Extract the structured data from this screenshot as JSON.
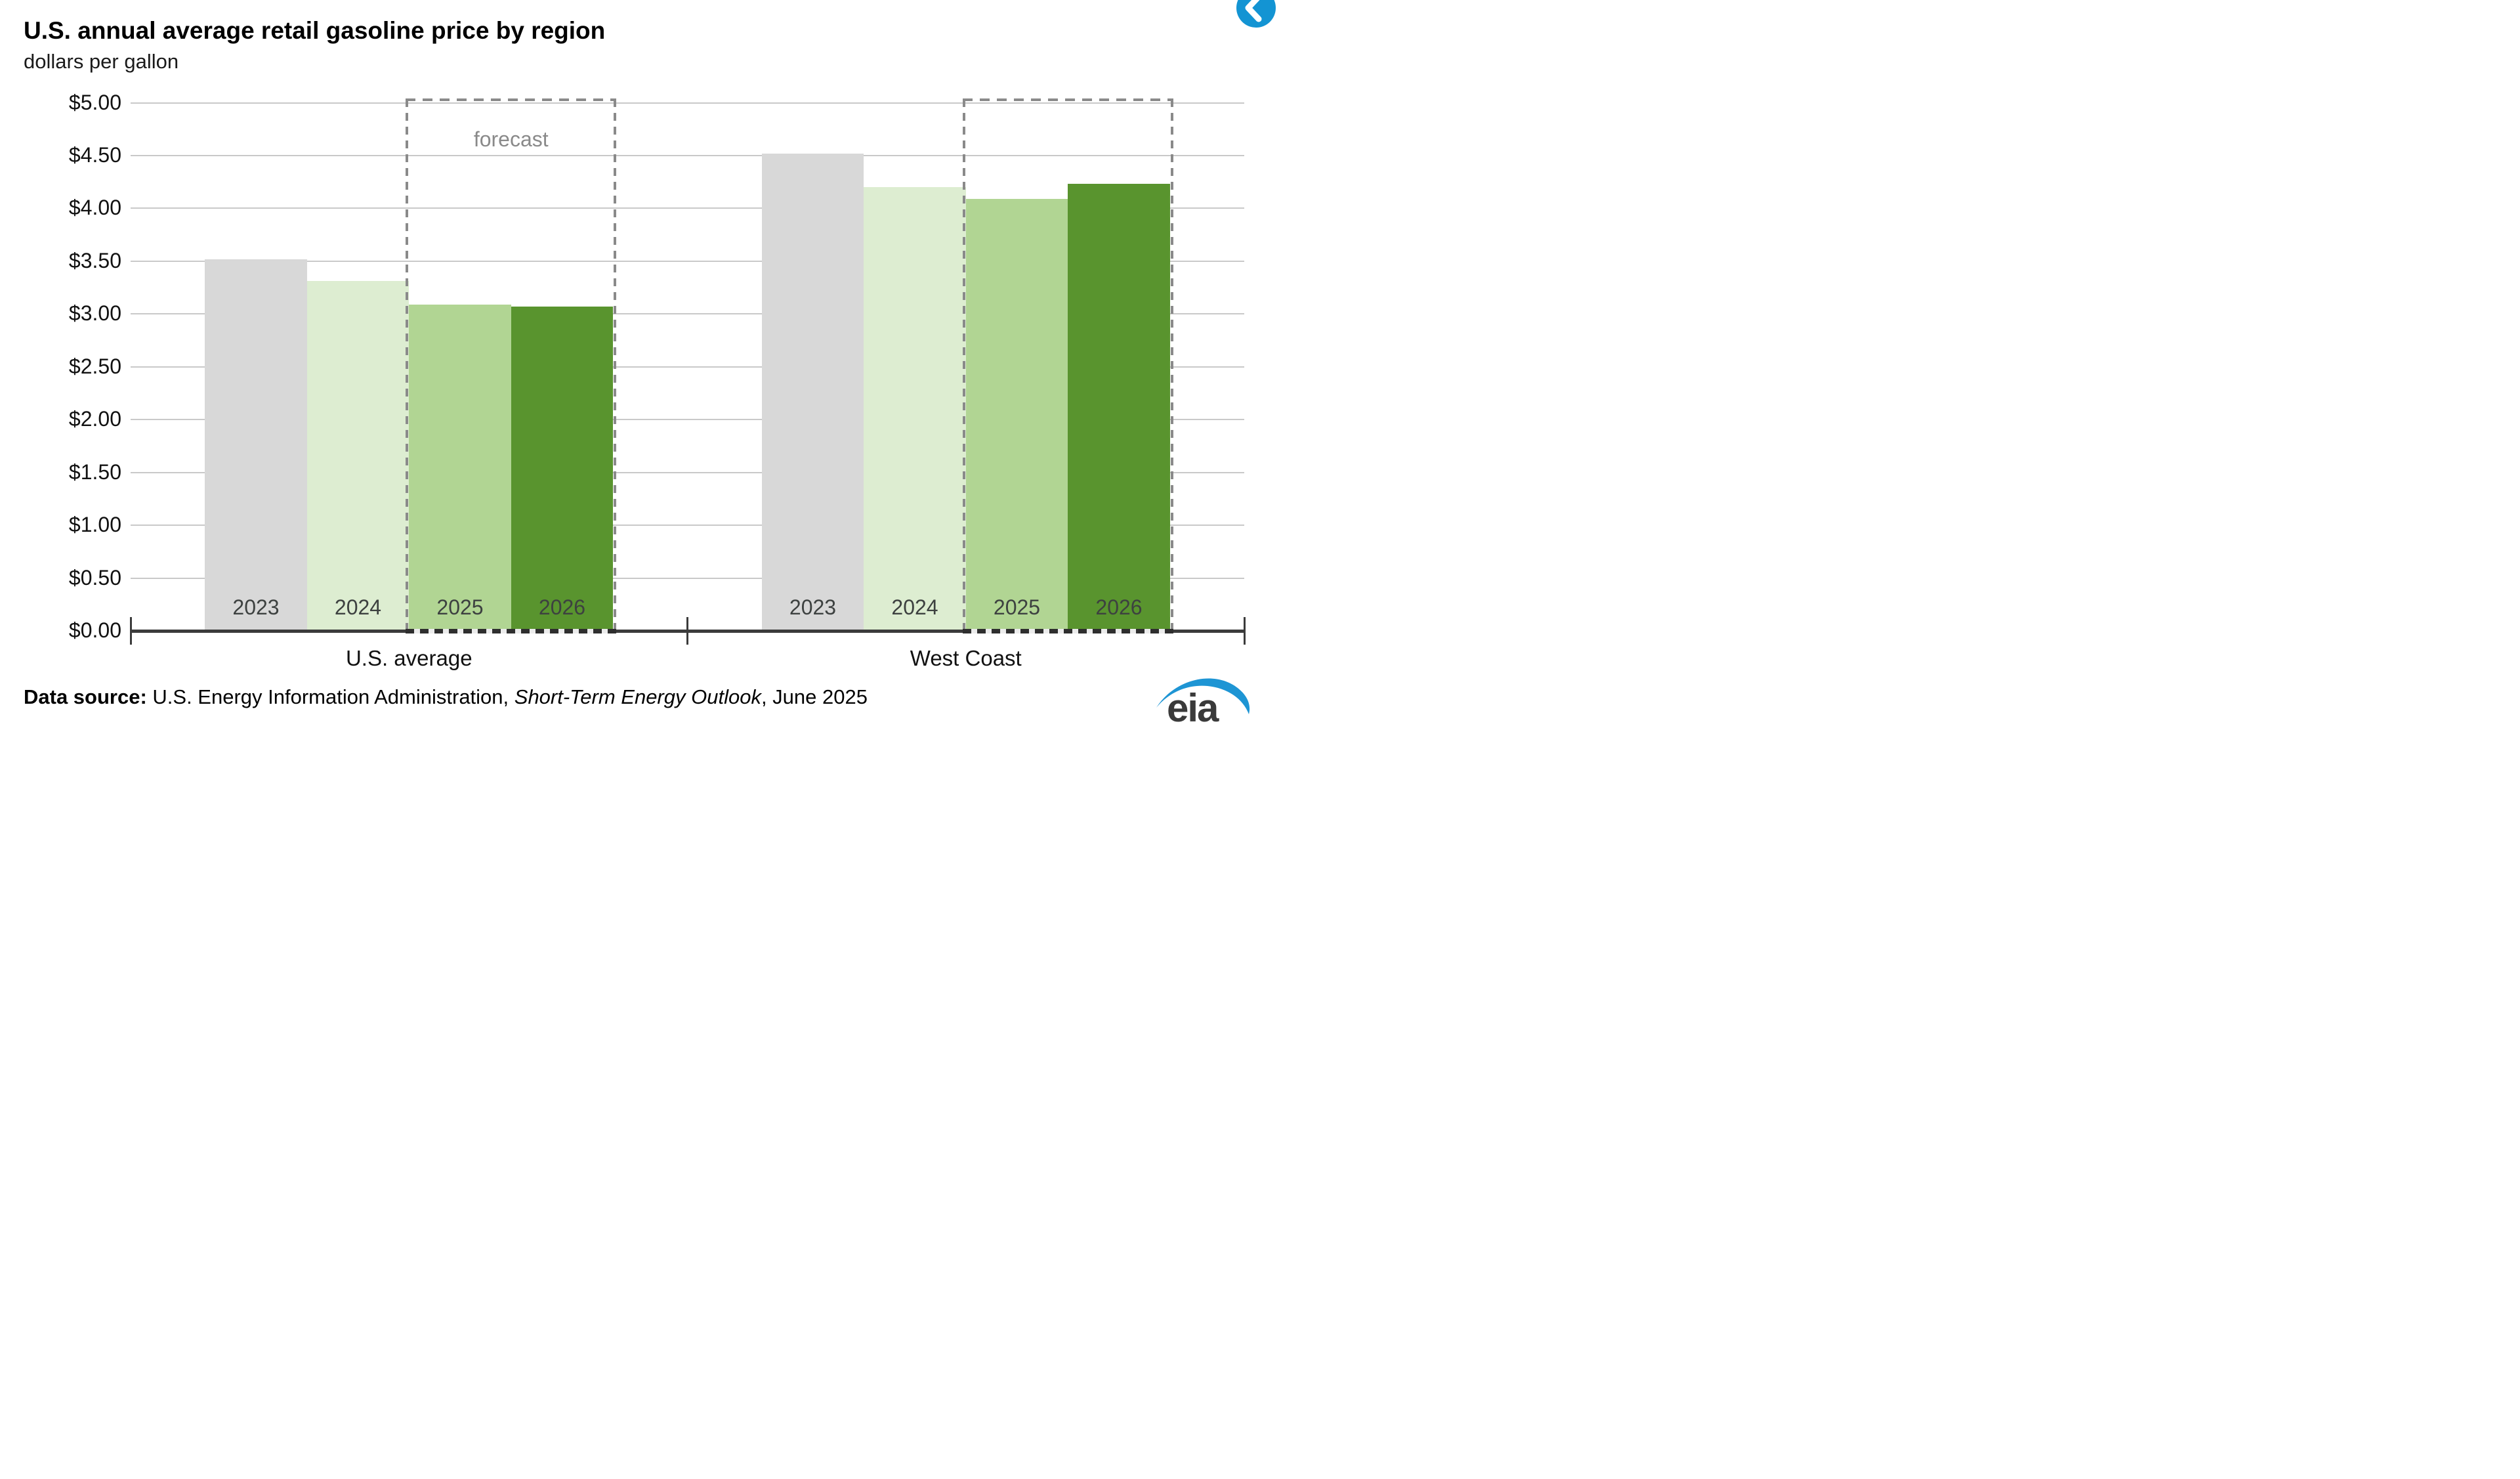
{
  "header": {
    "title": "U.S. annual average retail gasoline price by region",
    "subtitle": "dollars per gallon"
  },
  "chart": {
    "y_tick_labels": [
      "$0.00",
      "$0.50",
      "$1.00",
      "$1.50",
      "$2.00",
      "$2.50",
      "$3.00",
      "$3.50",
      "$4.00",
      "$4.50",
      "$5.00"
    ],
    "forecast_label": "forecast",
    "grid_color": "#c9c9c9",
    "axis_color": "#3b3b3b",
    "forecast_border_color": "#8a8a8a",
    "year_label_color": "#3d4140"
  },
  "chart_data": {
    "type": "bar",
    "title": "U.S. annual average retail gasoline price by region",
    "xlabel": "",
    "ylabel": "dollars per gallon",
    "categories": [
      "U.S. average",
      "West Coast"
    ],
    "series": [
      {
        "name": "2023",
        "color": "#d8d8d8",
        "forecast": false,
        "values": [
          3.52,
          4.52
        ]
      },
      {
        "name": "2024",
        "color": "#ddedd1",
        "forecast": false,
        "values": [
          3.31,
          4.2
        ]
      },
      {
        "name": "2025",
        "color": "#b1d593",
        "forecast": true,
        "values": [
          3.09,
          4.09
        ]
      },
      {
        "name": "2026",
        "color": "#59942e",
        "forecast": true,
        "values": [
          3.07,
          4.23
        ]
      }
    ],
    "ylim": [
      0,
      5
    ],
    "ytick_step": 0.5,
    "grid": true,
    "legend_position": "none",
    "annotations": [
      "forecast boxes around 2025 and 2026 bars in both groups; 'forecast' text only in U.S. average box"
    ]
  },
  "footer": {
    "ds_label": "Data source:",
    "ds_text": " U.S. Energy Information Administration, ",
    "ds_italic": "Short-Term Energy Outlook",
    "ds_suffix": ", June 2025",
    "logo_text": "eia",
    "logo_blue": "#1e95d4"
  },
  "nav": {
    "circle_color": "#1394d3"
  }
}
